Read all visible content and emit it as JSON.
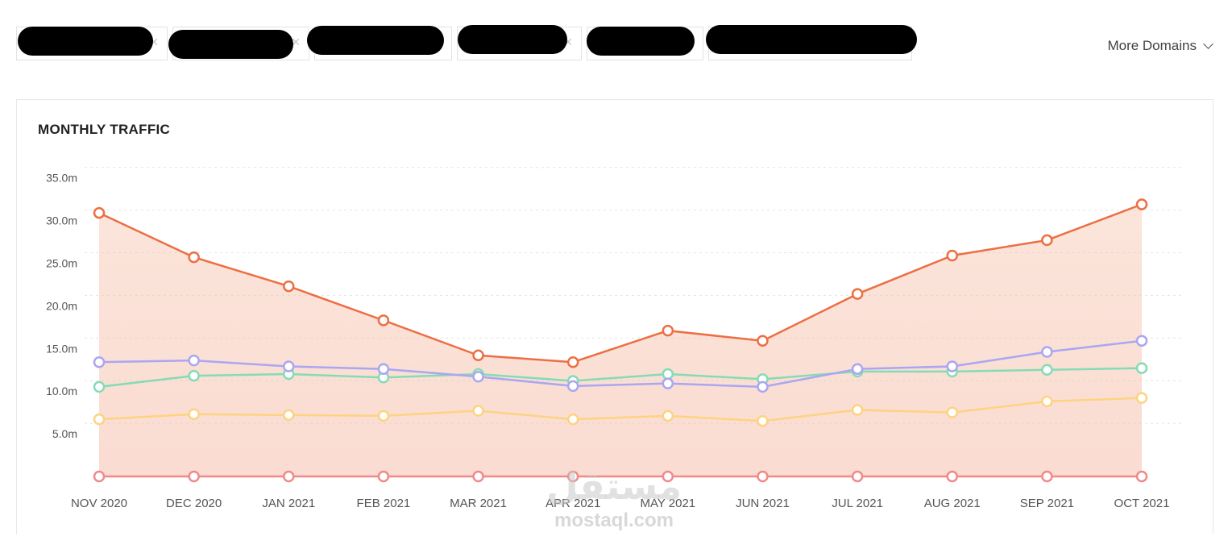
{
  "header": {
    "more_domains_label": "More Domains",
    "tabs": [
      {
        "label": ""
      },
      {
        "label": ""
      },
      {
        "label": ""
      },
      {
        "label": ""
      },
      {
        "label": ""
      },
      {
        "label": ""
      }
    ]
  },
  "watermark": {
    "arabic": "مستقل",
    "latin": "mostaql.com"
  },
  "chart_data": {
    "type": "line",
    "title": "MONTHLY TRAFFIC",
    "xlabel": "",
    "ylabel": "",
    "categories": [
      "NOV 2020",
      "DEC 2020",
      "JAN 2021",
      "FEB 2021",
      "MAR 2021",
      "APR 2021",
      "MAY 2021",
      "JUN 2021",
      "JUL 2021",
      "AUG 2021",
      "SEP 2021",
      "OCT 2021"
    ],
    "y_ticks": [
      {
        "value": 5,
        "label": "5.0m"
      },
      {
        "value": 10,
        "label": "10.0m"
      },
      {
        "value": 15,
        "label": "15.0m"
      },
      {
        "value": 20,
        "label": "20.0m"
      },
      {
        "value": 25,
        "label": "25.0m"
      },
      {
        "value": 30,
        "label": "30.0m"
      },
      {
        "value": 35,
        "label": "35.0m"
      }
    ],
    "ylim": [
      0,
      36.5
    ],
    "grid": true,
    "legend": "none",
    "series": [
      {
        "color": "#ec6f44",
        "filled": true,
        "values": [
          30.9,
          25.7,
          22.3,
          18.3,
          14.2,
          13.4,
          17.1,
          15.9,
          21.4,
          25.9,
          27.7,
          31.9
        ]
      },
      {
        "color": "#aaa6f2",
        "filled": false,
        "values": [
          13.4,
          13.6,
          12.9,
          12.6,
          11.7,
          10.6,
          10.9,
          10.5,
          12.6,
          12.9,
          14.6,
          15.9
        ]
      },
      {
        "color": "#85dcb4",
        "filled": false,
        "values": [
          10.5,
          11.8,
          12.0,
          11.6,
          12.0,
          11.2,
          12.0,
          11.4,
          12.3,
          12.3,
          12.5,
          12.7
        ]
      },
      {
        "color": "#fdd382",
        "filled": false,
        "values": [
          6.7,
          7.3,
          7.2,
          7.1,
          7.7,
          6.7,
          7.1,
          6.5,
          7.8,
          7.5,
          8.8,
          9.2
        ]
      },
      {
        "color": "#f08a8a",
        "filled": false,
        "values": [
          0,
          0,
          0,
          0,
          0,
          0,
          0,
          0,
          0,
          0,
          0,
          0
        ]
      }
    ]
  }
}
